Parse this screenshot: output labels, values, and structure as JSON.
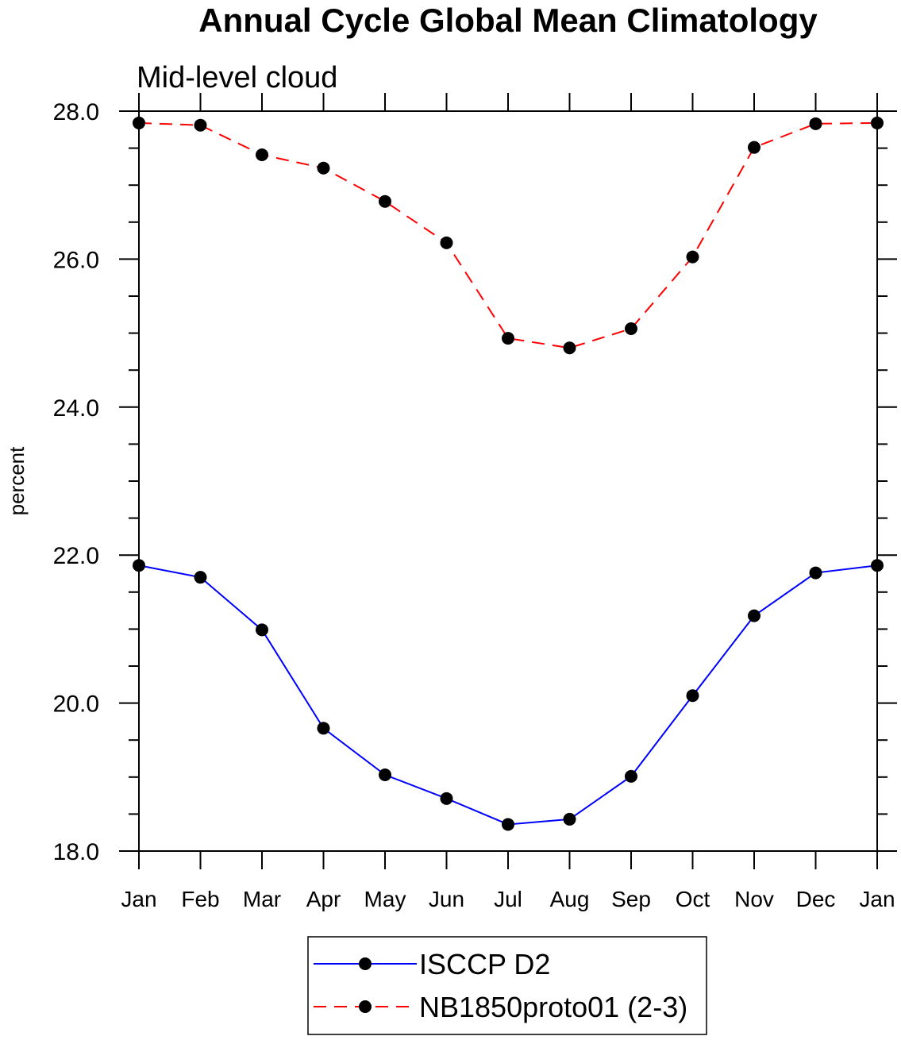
{
  "chart_data": {
    "type": "line",
    "title": "Annual Cycle Global Mean Climatology",
    "subtitle": "Mid-level cloud",
    "xlabel": "",
    "ylabel": "percent",
    "ylim": [
      18.0,
      28.0
    ],
    "yticks": [
      "18.0",
      "20.0",
      "22.0",
      "24.0",
      "26.0",
      "28.0"
    ],
    "ytick_values": [
      18,
      20,
      22,
      24,
      26,
      28
    ],
    "categories": [
      "Jan",
      "Feb",
      "Mar",
      "Apr",
      "May",
      "Jun",
      "Jul",
      "Aug",
      "Sep",
      "Oct",
      "Nov",
      "Dec",
      "Jan"
    ],
    "grid": false,
    "legend_position": "bottom",
    "series": [
      {
        "name": "ISCCP D2",
        "color": "#0000ff",
        "dash": "solid",
        "values": [
          21.86,
          21.7,
          20.99,
          19.66,
          19.03,
          18.71,
          18.36,
          18.43,
          19.01,
          20.1,
          21.18,
          21.76,
          21.86
        ]
      },
      {
        "name": "NB1850proto01 (2-3)",
        "color": "#ff0000",
        "dash": "dashed",
        "values": [
          27.84,
          27.81,
          27.41,
          27.23,
          26.78,
          26.22,
          24.93,
          24.8,
          25.06,
          26.03,
          27.51,
          27.83,
          27.84
        ]
      }
    ]
  }
}
